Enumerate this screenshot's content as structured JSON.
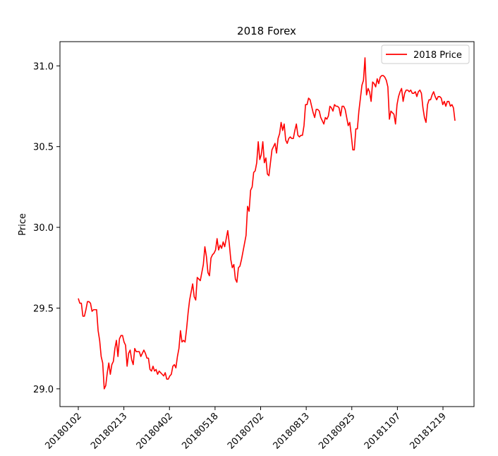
{
  "chart_data": {
    "type": "line",
    "title": "2018 Forex",
    "xlabel": "",
    "ylabel": "Price",
    "ylim": [
      28.89,
      31.15
    ],
    "y_ticks": [
      29.0,
      29.5,
      30.0,
      30.5,
      31.0
    ],
    "x_tick_labels": [
      "20180102",
      "20180213",
      "20180402",
      "20180518",
      "20180702",
      "20180813",
      "20180925",
      "20181107",
      "20181219"
    ],
    "grid": false,
    "legend_position": "top-right",
    "colors": {
      "line": "#ff0000",
      "axes": "#000000",
      "background": "#ffffff"
    },
    "series": [
      {
        "name": "2018 Price",
        "values": [
          29.56,
          29.53,
          29.53,
          29.45,
          29.45,
          29.49,
          29.54,
          29.54,
          29.53,
          29.48,
          29.49,
          29.49,
          29.49,
          29.36,
          29.3,
          29.2,
          29.16,
          29.0,
          29.02,
          29.1,
          29.16,
          29.09,
          29.15,
          29.17,
          29.25,
          29.3,
          29.2,
          29.31,
          29.33,
          29.33,
          29.29,
          29.27,
          29.14,
          29.22,
          29.24,
          29.18,
          29.15,
          29.25,
          29.23,
          29.23,
          29.23,
          29.2,
          29.22,
          29.24,
          29.22,
          29.19,
          29.19,
          29.12,
          29.11,
          29.14,
          29.11,
          29.12,
          29.09,
          29.11,
          29.1,
          29.09,
          29.08,
          29.1,
          29.06,
          29.06,
          29.08,
          29.09,
          29.14,
          29.15,
          29.13,
          29.2,
          29.25,
          29.36,
          29.29,
          29.3,
          29.29,
          29.37,
          29.47,
          29.55,
          29.6,
          29.65,
          29.57,
          29.55,
          29.69,
          29.68,
          29.67,
          29.72,
          29.77,
          29.88,
          29.82,
          29.72,
          29.7,
          29.81,
          29.83,
          29.84,
          29.86,
          29.93,
          29.86,
          29.89,
          29.87,
          29.91,
          29.88,
          29.93,
          29.98,
          29.9,
          29.8,
          29.75,
          29.77,
          29.68,
          29.66,
          29.75,
          29.76,
          29.8,
          29.85,
          29.9,
          29.95,
          30.13,
          30.1,
          30.23,
          30.25,
          30.34,
          30.35,
          30.4,
          30.53,
          30.42,
          30.45,
          30.53,
          30.4,
          30.43,
          30.33,
          30.32,
          30.4,
          30.48,
          30.5,
          30.52,
          30.46,
          30.55,
          30.58,
          30.65,
          30.6,
          30.64,
          30.54,
          30.52,
          30.55,
          30.56,
          30.55,
          30.55,
          30.6,
          30.64,
          30.57,
          30.56,
          30.57,
          30.57,
          30.63,
          30.76,
          30.76,
          30.8,
          30.79,
          30.75,
          30.71,
          30.68,
          30.73,
          30.73,
          30.72,
          30.68,
          30.66,
          30.64,
          30.68,
          30.67,
          30.69,
          30.75,
          30.74,
          30.72,
          30.76,
          30.75,
          30.75,
          30.74,
          30.69,
          30.75,
          30.75,
          30.73,
          30.68,
          30.63,
          30.65,
          30.57,
          30.48,
          30.48,
          30.61,
          30.61,
          30.72,
          30.8,
          30.88,
          30.91,
          31.05,
          30.82,
          30.86,
          30.84,
          30.78,
          30.9,
          30.89,
          30.87,
          30.92,
          30.89,
          30.93,
          30.94,
          30.94,
          30.93,
          30.91,
          30.87,
          30.67,
          30.72,
          30.71,
          30.7,
          30.64,
          30.76,
          30.81,
          30.84,
          30.86,
          30.78,
          30.83,
          30.85,
          30.85,
          30.84,
          30.85,
          30.83,
          30.83,
          30.84,
          30.81,
          30.84,
          30.85,
          30.83,
          30.74,
          30.68,
          30.65,
          30.76,
          30.79,
          30.79,
          30.82,
          30.84,
          30.81,
          30.79,
          30.81,
          30.81,
          30.8,
          30.76,
          30.78,
          30.75,
          30.78,
          30.78,
          30.75,
          30.76,
          30.74,
          30.66
        ]
      }
    ]
  }
}
